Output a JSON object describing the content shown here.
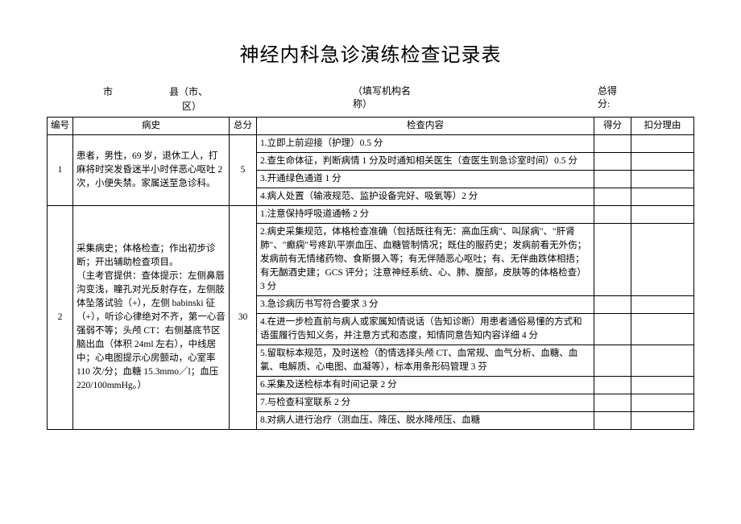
{
  "title": "神经内科急诊演练检查记录表",
  "header": {
    "city_label": "市",
    "county_label": "县（市、",
    "county_label2": "区）",
    "org_label1": "（填写机构名",
    "org_label2": "称）",
    "total_label1": "总得",
    "total_label2": "分:"
  },
  "columns": {
    "num": "编号",
    "history": "病史",
    "total": "总分",
    "content": "检查内容",
    "score": "得分",
    "reason": "扣分理由"
  },
  "rows": [
    {
      "num": "1",
      "history": "患者，男性，69 岁，退休工人，打麻将时突发昏迷半小时伴恶心呕吐 2 次，小便失禁。家属送至急诊科。",
      "total": "5",
      "items": [
        "1.立即上前迎接（护理）0.5 分",
        "2.查生命体征，判断病情 1 分及时通知相关医生（查医生到急诊室时间）0.5 分",
        "3.开通绿色通道 1 分",
        "4.病人处置（输液规范、监护设备完好、吸氧等）2 分"
      ]
    },
    {
      "num": "2",
      "history": "采集病史；体格检查；作出初步诊断；开出辅助检查项目。\n（主考官提供：查体提示：左侧鼻唇沟变浅，瞳孔对光反射存在，左侧肢体坠落试验（+），左侧 babinski 征（+），听诊心律绝对不齐，第一心音强弱不等；头颅 CT：右侧基底节区脑出血（体积 24ml 左右），中线居中；心电图提示心房颤动，心室率110 次/分；血糖 15.3mmo／l；血压 220/100mmHg。）",
      "total": "30",
      "items": [
        "1.注意保持呼吸道通畅 2 分",
        "2.病史采集规范，体格检查准确（包括既往有无：高血压病\"、叫尿病\"、\"肝肾肺\"、\"癫痫\"号疼趴平崇血压、血糖管制情况；既住的服药史；发病前看无外伤；发病前有无情绪药物、食斯摄入等；有无伴随恶心呕吐；有、无伴曲跌体相捂；有无酗酒史建；GCS 评分；注意神经系统、心、肺、腹部，皮肤等的体格检查）3 分",
        "3.急诊病历书写符合要求 3 分",
        "4.在进一步检直前与病人或家属知情说话（告知诊断）用患者通俗易懂的方式和语蛋履行告知义务，并注意方式和态度，知情同意告知内容详细 4 分",
        "5.留取标本规范，及时送检（酌情选择头颅 CT、血常规、血气分析、血糖、血氯、电解质、心电图、血凝等），标本用条形码管理 3 芬",
        "6.采集及送检标本有时间记录 2 分",
        "7.与检查科室联系 2 分",
        "8.对病人进行治疗（测血压、降压、脱水降颅压、血糖"
      ]
    }
  ]
}
